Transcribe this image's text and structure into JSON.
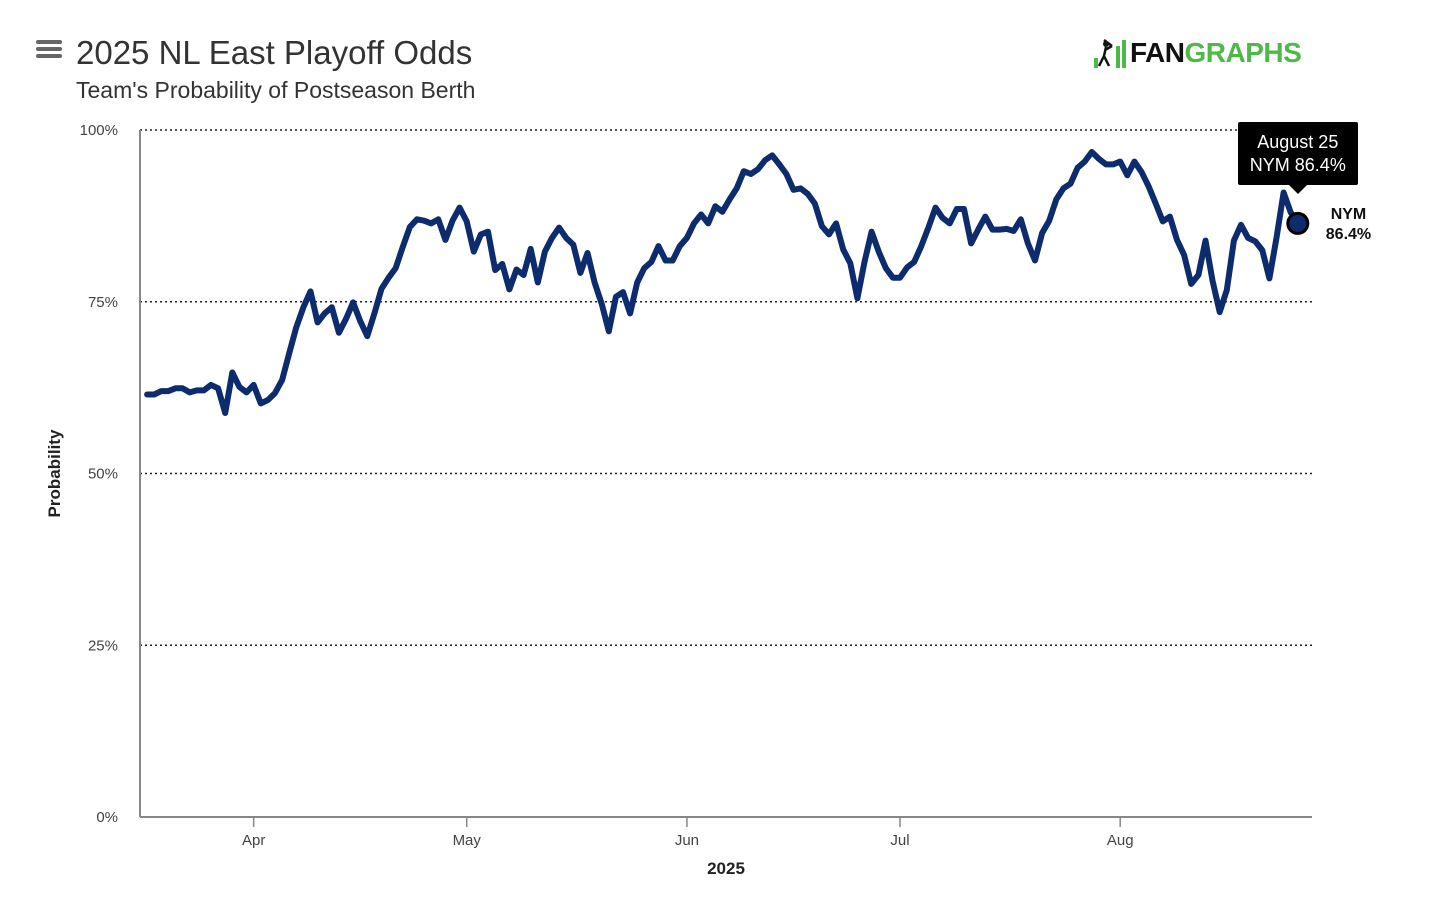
{
  "header": {
    "title": "2025 NL East Playoff Odds",
    "subtitle": "Team's Probability of Postseason Berth",
    "logo_left": "FAN",
    "logo_right": "GRAPHS"
  },
  "colors": {
    "series": "#0c2c6e",
    "grid": "#222222",
    "axis": "#888888",
    "logo_green": "#4eb848"
  },
  "tooltip": {
    "date": "August 25",
    "value_text": "NYM 86.4%"
  },
  "end_label": {
    "team": "NYM",
    "value": "86.4%"
  },
  "chart_data": {
    "type": "line",
    "title": "2025 NL East Playoff Odds",
    "subtitle": "Team's Probability of Postseason Berth",
    "xlabel": "2025",
    "ylabel": "Probability",
    "x_start_day": -16,
    "x_end_day": 149,
    "ylim": [
      0,
      100
    ],
    "grid": true,
    "y_ticks": [
      {
        "value": 0,
        "label": "0%"
      },
      {
        "value": 25,
        "label": "25%"
      },
      {
        "value": 50,
        "label": "50%"
      },
      {
        "value": 75,
        "label": "75%"
      },
      {
        "value": 100,
        "label": "100%"
      }
    ],
    "x_ticks": [
      {
        "day": 0,
        "label": "Apr"
      },
      {
        "day": 30,
        "label": "May"
      },
      {
        "day": 61,
        "label": "Jun"
      },
      {
        "day": 91,
        "label": "Jul"
      },
      {
        "day": 122,
        "label": "Aug"
      }
    ],
    "series": [
      {
        "name": "NYM",
        "start_day": -15,
        "last_label": "86.4%",
        "values": [
          61.5,
          61.5,
          62,
          62,
          62.4,
          62.4,
          61.8,
          62.1,
          62.1,
          62.9,
          62.4,
          58.8,
          64.7,
          62.6,
          61.8,
          62.9,
          60.2,
          60.7,
          61.7,
          63.6,
          67.5,
          71.3,
          74.2,
          76.5,
          72,
          73.3,
          74.2,
          70.5,
          72.5,
          74.9,
          72.2,
          70,
          73.3,
          76.9,
          78.5,
          79.9,
          83,
          85.9,
          87,
          86.8,
          86.4,
          87,
          84,
          86.8,
          88.7,
          86.7,
          82.3,
          84.8,
          85.2,
          79.6,
          80.5,
          76.8,
          79.7,
          78.9,
          82.7,
          77.8,
          82.3,
          84.3,
          85.8,
          84.3,
          83.3,
          79.2,
          82.1,
          77.8,
          74.7,
          70.7,
          75.7,
          76.4,
          73.3,
          77.8,
          79.9,
          80.8,
          83.1,
          81,
          81,
          83.1,
          84.3,
          86.4,
          87.7,
          86.4,
          88.9,
          88.1,
          89.9,
          91.5,
          94,
          93.6,
          94.3,
          95.6,
          96.3,
          95,
          93.6,
          91.3,
          91.5,
          90.7,
          89.3,
          86,
          84.8,
          86.4,
          82.6,
          80.6,
          75.5,
          80.8,
          85.2,
          82.3,
          79.9,
          78.5,
          78.5,
          80,
          80.8,
          83.1,
          85.8,
          88.7,
          87.2,
          86.4,
          88.5,
          88.5,
          83.5,
          85.5,
          87.4,
          85.5,
          85.5,
          85.6,
          85.3,
          87,
          83.5,
          81,
          85,
          86.8,
          89.9,
          91.5,
          92.2,
          94.5,
          95.4,
          96.8,
          95.8,
          95,
          95,
          95.4,
          93.4,
          95.4,
          93.9,
          91.8,
          89.3,
          86.7,
          87.4,
          84,
          81.8,
          77.6,
          78.9,
          83.9,
          78,
          73.5,
          76.7,
          83.9,
          86.2,
          84.3,
          83.8,
          82.5,
          78.4,
          84.3,
          90.9,
          88,
          86.4
        ]
      }
    ]
  }
}
